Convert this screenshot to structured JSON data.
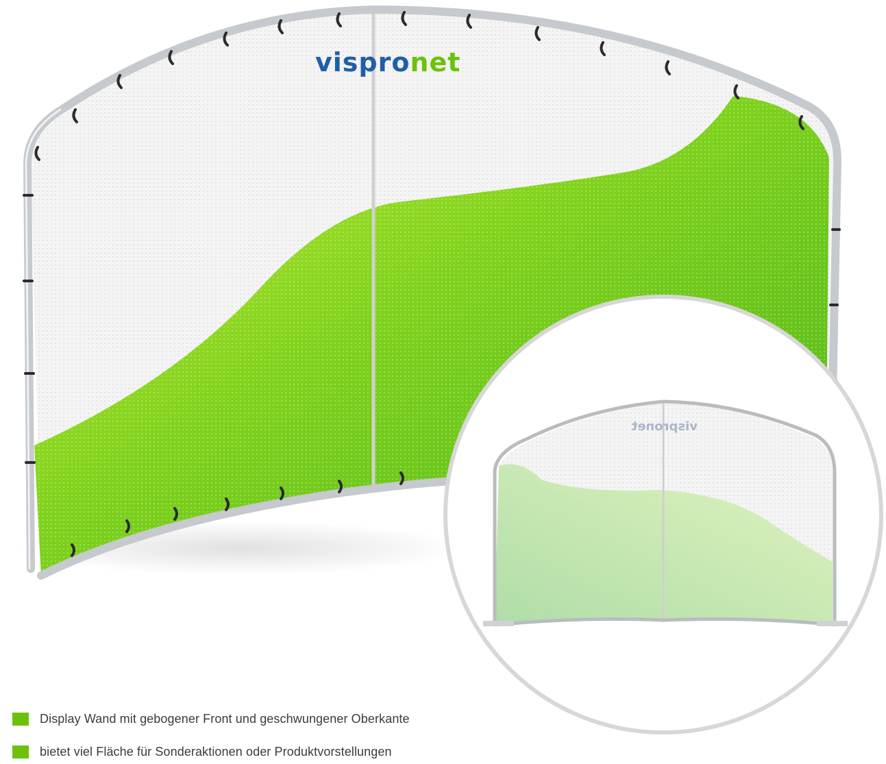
{
  "brand": {
    "logo_text_main": "vispronet",
    "logo_text_vis": "vis",
    "logo_text_pro": "pro",
    "logo_text_net": "net",
    "color_blue": "#1f5fa8",
    "color_green": "#6cc20a"
  },
  "features": [
    {
      "icon": "green-square-bullet",
      "text": "Display Wand mit gebogener Front und geschwungener Oberkante"
    },
    {
      "icon": "green-square-bullet",
      "text": "bietet viel Fläche für Sonderaktionen oder Produktvorstellungen"
    }
  ],
  "colors": {
    "accent": "#6cc20a",
    "frame": "#c9ccd0",
    "text": "#3b3b3b"
  }
}
